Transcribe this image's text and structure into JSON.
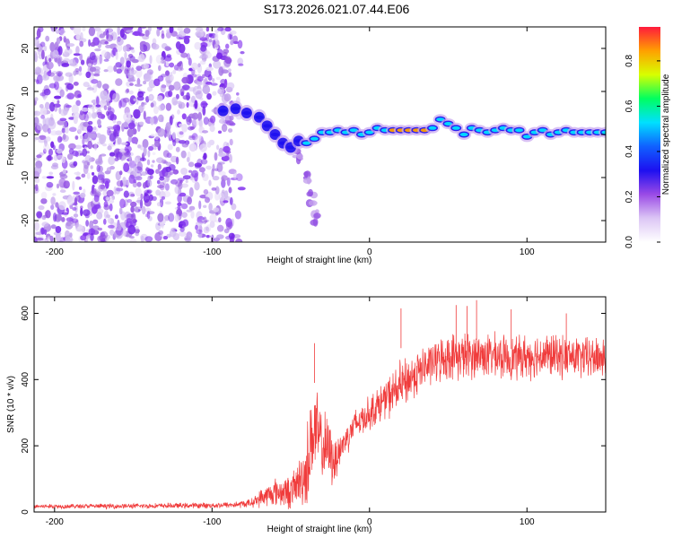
{
  "title": "S173.2026.021.07.44.E06",
  "chart_data": [
    {
      "type": "heatmap",
      "name": "spectrogram",
      "xlabel": "Height of straight line (km)",
      "ylabel": "Frequency (Hz)",
      "xlim": [
        -213,
        150
      ],
      "ylim": [
        -25,
        25
      ],
      "xticks": [
        -200,
        -100,
        0,
        100
      ],
      "yticks": [
        -20,
        -10,
        0,
        10,
        20
      ],
      "colorbar": {
        "label": "Normalized spectral amplitude",
        "range": [
          0.0,
          0.95
        ],
        "ticks": [
          0.0,
          0.2,
          0.4,
          0.6,
          0.8
        ],
        "tick_labels": [
          "0.0",
          "0.2",
          "0.4",
          "0.6",
          "0.8"
        ],
        "colors": [
          "#ffffff",
          "#dcc6f5",
          "#9a4ae6",
          "#1d10f0",
          "#1060ff",
          "#00e0ff",
          "#00ff60",
          "#d8ff00",
          "#ffa000",
          "#ff1a3c"
        ]
      },
      "noise_region_x": [
        -213,
        -80
      ],
      "signal_trace": [
        [
          -93,
          5.5
        ],
        [
          -85,
          6.0
        ],
        [
          -78,
          5.0
        ],
        [
          -70,
          4.0
        ],
        [
          -65,
          2.0
        ],
        [
          -60,
          0.0
        ],
        [
          -55,
          -2.0
        ],
        [
          -50,
          -3.0
        ],
        [
          -45,
          -1.5
        ],
        [
          -40,
          -2.0
        ],
        [
          -35,
          -1.0
        ],
        [
          -30,
          0.5
        ],
        [
          -25,
          0.5
        ],
        [
          -20,
          1.0
        ],
        [
          -15,
          0.5
        ],
        [
          -10,
          1.0
        ],
        [
          -5,
          0.0
        ],
        [
          0,
          0.5
        ],
        [
          5,
          1.5
        ],
        [
          10,
          1.0
        ],
        [
          15,
          1.0
        ],
        [
          20,
          1.0
        ],
        [
          25,
          1.0
        ],
        [
          30,
          1.0
        ],
        [
          35,
          1.0
        ],
        [
          40,
          1.5
        ],
        [
          45,
          3.5
        ],
        [
          50,
          2.5
        ],
        [
          55,
          1.5
        ],
        [
          60,
          0.0
        ],
        [
          65,
          1.5
        ],
        [
          70,
          1.0
        ],
        [
          75,
          0.5
        ],
        [
          80,
          1.0
        ],
        [
          85,
          1.5
        ],
        [
          90,
          1.0
        ],
        [
          95,
          1.0
        ],
        [
          100,
          -0.5
        ],
        [
          105,
          0.5
        ],
        [
          110,
          1.0
        ],
        [
          115,
          0.0
        ],
        [
          120,
          0.5
        ],
        [
          125,
          1.0
        ],
        [
          130,
          0.5
        ],
        [
          135,
          0.5
        ],
        [
          140,
          0.5
        ],
        [
          145,
          0.5
        ],
        [
          150,
          0.5
        ]
      ],
      "side_lobe": [
        [
          -45,
          -5
        ],
        [
          -40,
          -10
        ],
        [
          -37,
          -15
        ],
        [
          -35,
          -19
        ]
      ]
    },
    {
      "type": "line",
      "name": "snr",
      "xlabel": "Height of straight line (km)",
      "ylabel": "SNR (10 * v/v)",
      "xlim": [
        -213,
        150
      ],
      "ylim": [
        0,
        650
      ],
      "xticks": [
        -200,
        -100,
        0,
        100
      ],
      "yticks": [
        0,
        200,
        400,
        600
      ],
      "series": [
        {
          "name": "SNR",
          "color": "#f03c3c",
          "envelope": {
            "x": [
              -213,
              -150,
              -100,
              -85,
              -75,
              -70,
              -60,
              -50,
              -45,
              -40,
              -38,
              -35,
              -30,
              -25,
              -22,
              -20,
              -15,
              -10,
              0,
              10,
              20,
              30,
              40,
              50,
              60,
              70,
              80,
              90,
              100,
              110,
              120,
              130,
              140,
              150
            ],
            "mean": [
              17,
              18,
              20,
              22,
              27,
              40,
              60,
              60,
              90,
              120,
              200,
              250,
              200,
              180,
              150,
              180,
              220,
              260,
              300,
              340,
              380,
              420,
              450,
              470,
              470,
              475,
              470,
              465,
              470,
              475,
              470,
              468,
              465,
              470
            ],
            "amp": [
              8,
              9,
              10,
              12,
              15,
              30,
              50,
              60,
              80,
              140,
              180,
              160,
              130,
              110,
              90,
              70,
              55,
              60,
              60,
              70,
              90,
              80,
              75,
              80,
              85,
              80,
              80,
              75,
              80,
              80,
              75,
              75,
              75,
              80
            ]
          },
          "peaks": [
            [
              -35,
              510
            ],
            [
              55,
              625
            ],
            [
              68,
              640
            ],
            [
              62,
              622
            ],
            [
              20,
              615
            ],
            [
              90,
              612
            ],
            [
              125,
              600
            ]
          ]
        }
      ]
    }
  ]
}
